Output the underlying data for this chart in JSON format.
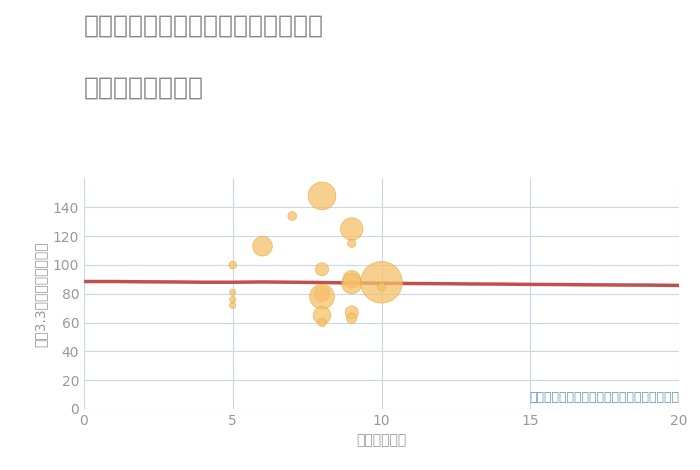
{
  "title_line1": "神奈川県横浜市南区井土ヶ谷中町の",
  "title_line2": "駅距離別土地価格",
  "xlabel": "駅距離（分）",
  "ylabel": "坪（3.3㎡）単価（万円）",
  "annotation": "円の大きさは、取引のあった物件面積を示す",
  "xlim": [
    0,
    20
  ],
  "ylim": [
    0,
    160
  ],
  "yticks": [
    0,
    20,
    40,
    60,
    80,
    100,
    120,
    140
  ],
  "xticks": [
    0,
    5,
    10,
    15,
    20
  ],
  "scatter_x": [
    5,
    5,
    5,
    5,
    6,
    7,
    8,
    8,
    8,
    8,
    8,
    8,
    9,
    9,
    9,
    9,
    9,
    9,
    10,
    10
  ],
  "scatter_y": [
    100,
    81,
    76,
    72,
    113,
    134,
    148,
    97,
    80,
    78,
    65,
    60,
    125,
    115,
    90,
    87,
    67,
    63,
    88,
    85
  ],
  "scatter_size": [
    30,
    20,
    20,
    20,
    200,
    40,
    400,
    90,
    130,
    320,
    160,
    35,
    260,
    35,
    160,
    210,
    90,
    55,
    900,
    35
  ],
  "trend_x": [
    0,
    1,
    2,
    3,
    4,
    5,
    6,
    7,
    8,
    9,
    10,
    11,
    12,
    13,
    14,
    15,
    16,
    17,
    18,
    19,
    20
  ],
  "trend_y": [
    88.5,
    88.5,
    88.3,
    88.2,
    88.0,
    88.0,
    88.2,
    88.0,
    87.8,
    87.5,
    87.3,
    87.1,
    87.0,
    86.8,
    86.7,
    86.5,
    86.4,
    86.2,
    86.1,
    86.0,
    85.8
  ],
  "scatter_color": "#F5C069",
  "scatter_alpha": 0.75,
  "scatter_edge_color": "#E8A830",
  "scatter_edge_width": 0.5,
  "trend_color": "#C0504D",
  "trend_linewidth": 2.5,
  "bg_color": "#FFFFFF",
  "grid_color": "#C8D8E8",
  "title_color": "#888888",
  "title_fontsize": 18,
  "label_fontsize": 10,
  "annotation_color": "#6699BB",
  "annotation_fontsize": 9,
  "tick_color": "#999999",
  "tick_fontsize": 10
}
